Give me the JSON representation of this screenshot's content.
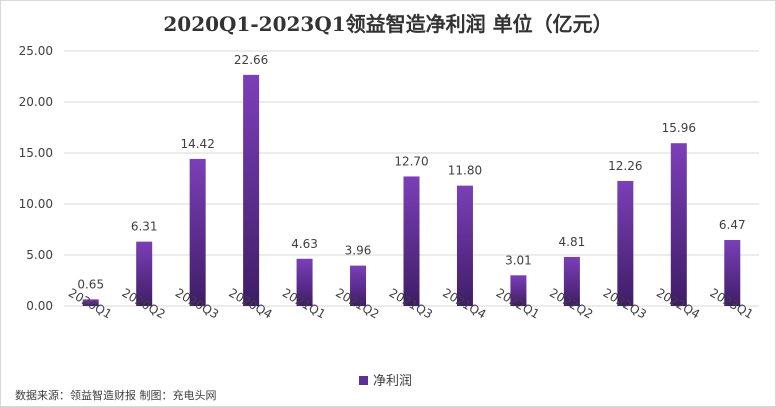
{
  "chart_data": {
    "type": "bar",
    "title": "2020Q1-2023Q1领益智造净利润 单位（亿元）",
    "categories": [
      "2020Q1",
      "2020Q2",
      "2020Q3",
      "2020Q4",
      "2021Q1",
      "2021Q2",
      "2021Q3",
      "2021Q4",
      "2022Q1",
      "2022Q2",
      "2022Q3",
      "2022Q4",
      "2023Q1"
    ],
    "series": [
      {
        "name": "净利润",
        "values": [
          0.65,
          6.31,
          14.42,
          22.66,
          4.63,
          3.96,
          12.7,
          11.8,
          3.01,
          4.81,
          12.26,
          15.96,
          6.47
        ]
      }
    ],
    "data_labels": [
      "0.65",
      "6.31",
      "14.42",
      "22.66",
      "4.63",
      "3.96",
      "12.70",
      "11.80",
      "3.01",
      "4.81",
      "12.26",
      "15.96",
      "6.47"
    ],
    "ylim": [
      0,
      25
    ],
    "yticks": [
      "0.00",
      "5.00",
      "10.00",
      "15.00",
      "20.00",
      "25.00"
    ],
    "grid": true,
    "legend_position": "bottom",
    "colors": {
      "bar_top": "#7b3fb8",
      "bar_bottom": "#3f1d66",
      "grid": "#d9d9d9"
    }
  },
  "source_note": "数据来源：领益智造财报  制图：充电头网"
}
